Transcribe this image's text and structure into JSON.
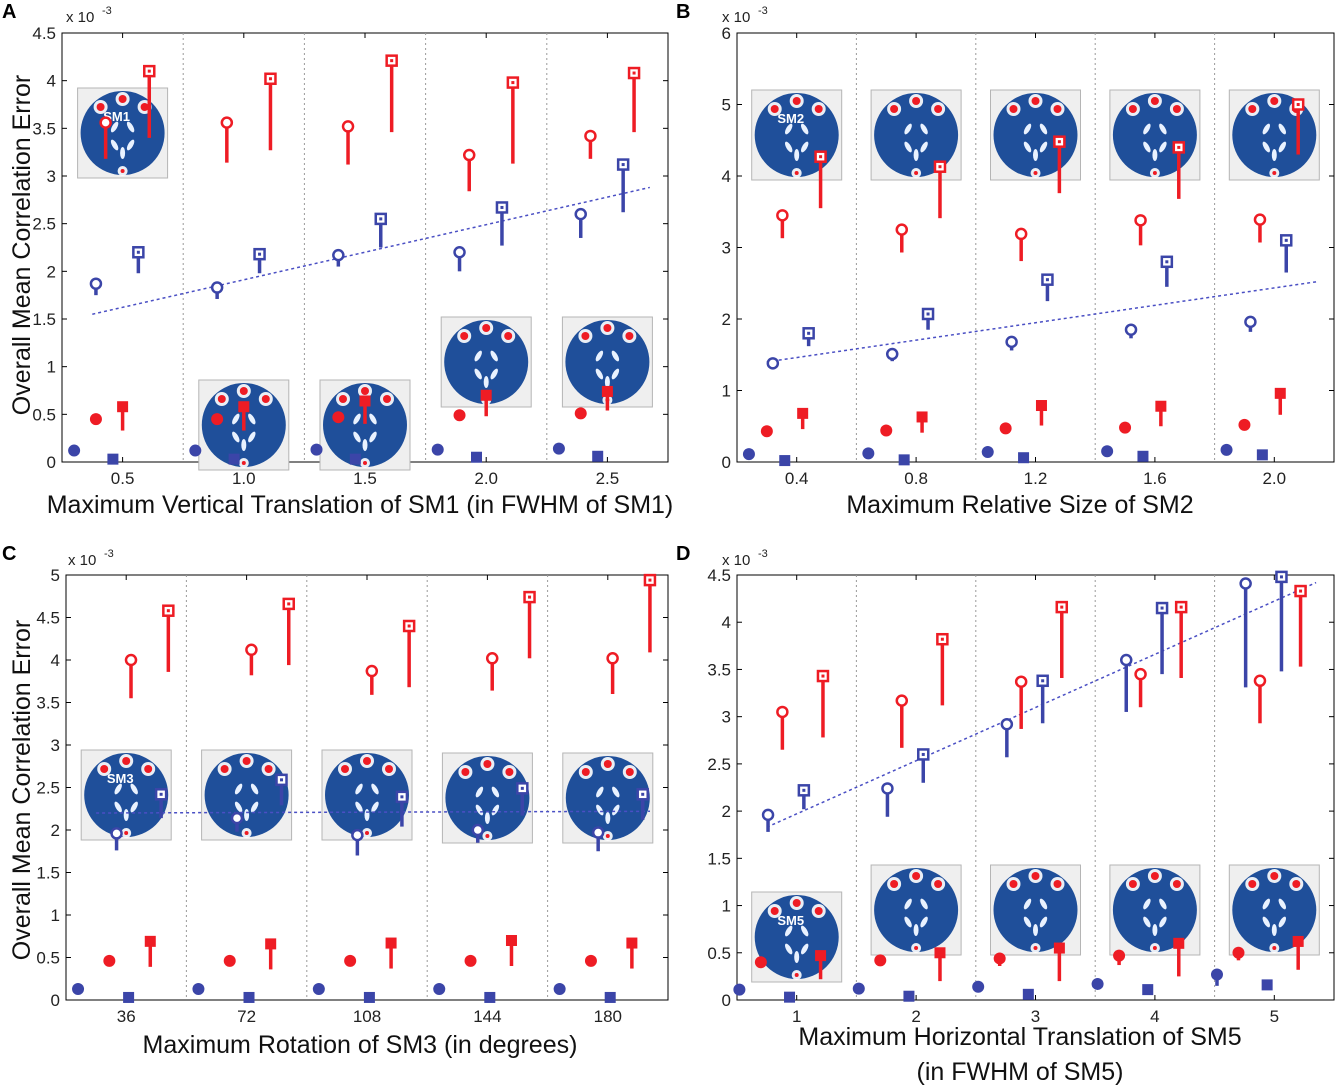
{
  "figure": {
    "colors": {
      "red": "#ee1c24",
      "blue": "#3b45a8",
      "trend": "#4a4fc4",
      "disk": "#1f4f9a",
      "grid": "#9a9a9a"
    },
    "legend": {
      "open_circle": "open circle",
      "open_square": "open square",
      "filled_circle": "filled circle",
      "filled_square": "filled square"
    }
  },
  "chart_data": [
    {
      "id": "A",
      "panel_label": "A",
      "type": "scatter",
      "xlabel": "Maximum Vertical Translation of SM1 (in FWHM of SM1)",
      "xlabel2": "",
      "ylabel": "Overall Mean Correlation Error",
      "scale": "x 10",
      "scale_exp": "-3",
      "ylim": [
        0,
        4.5
      ],
      "yticks": [
        0,
        0.5,
        1,
        1.5,
        2,
        2.5,
        3,
        3.5,
        4,
        4.5
      ],
      "ytick_labels": [
        "0",
        "0.5",
        "1",
        "1.5",
        "2",
        "2.5",
        "3",
        "3.5",
        "4",
        "4.5"
      ],
      "categories": [
        "0.5",
        "1.0",
        "1.5",
        "2.0",
        "2.5"
      ],
      "inset_label": "SM1",
      "inset_label_index": 0,
      "trend": [
        1.55,
        2.88
      ],
      "series": [
        {
          "name": "open circle",
          "color": "red",
          "marker": "circle",
          "filled": false,
          "offset": -0.14,
          "values": [
            3.56,
            3.56,
            3.52,
            3.22,
            3.42
          ],
          "stems": [
            0.38,
            0.42,
            0.4,
            0.38,
            0.24
          ]
        },
        {
          "name": "open square",
          "color": "red",
          "marker": "square",
          "filled": false,
          "offset": 0.22,
          "values": [
            4.1,
            4.02,
            4.21,
            3.98,
            4.08
          ],
          "stems": [
            0.7,
            0.75,
            0.75,
            0.85,
            0.62
          ]
        },
        {
          "name": "open circle",
          "color": "blue",
          "marker": "circle",
          "filled": false,
          "offset": -0.22,
          "values": [
            1.87,
            1.83,
            2.17,
            2.2,
            2.6
          ],
          "stems": [
            0.12,
            0.12,
            0.12,
            0.2,
            0.25
          ]
        },
        {
          "name": "open square",
          "color": "blue",
          "marker": "square",
          "filled": false,
          "offset": 0.13,
          "values": [
            2.2,
            2.18,
            2.55,
            2.67,
            3.12
          ],
          "stems": [
            0.22,
            0.2,
            0.3,
            0.4,
            0.5
          ]
        },
        {
          "name": "filled circle",
          "color": "red",
          "marker": "circle",
          "filled": true,
          "offset": -0.22,
          "values": [
            0.45,
            0.45,
            0.47,
            0.49,
            0.51
          ],
          "stems": [
            0,
            0,
            0,
            0,
            0
          ]
        },
        {
          "name": "filled square",
          "color": "red",
          "marker": "square",
          "filled": true,
          "offset": 0.0,
          "values": [
            0.58,
            0.58,
            0.64,
            0.7,
            0.74
          ],
          "stems": [
            0.25,
            0.25,
            0.24,
            0.22,
            0.2
          ]
        },
        {
          "name": "filled circle",
          "color": "blue",
          "marker": "circle",
          "filled": true,
          "offset": -0.4,
          "values": [
            0.12,
            0.12,
            0.13,
            0.13,
            0.14
          ],
          "stems": [
            0,
            0,
            0,
            0,
            0
          ]
        },
        {
          "name": "filled square",
          "color": "blue",
          "marker": "square",
          "filled": true,
          "offset": -0.08,
          "values": [
            0.03,
            0.03,
            0.03,
            0.05,
            0.06
          ],
          "stems": [
            0,
            0,
            0,
            0,
            0
          ]
        }
      ]
    },
    {
      "id": "B",
      "panel_label": "B",
      "type": "scatter",
      "xlabel": "Maximum Relative Size of SM2",
      "xlabel2": "",
      "ylabel": "",
      "scale": "x 10",
      "scale_exp": "-3",
      "ylim": [
        0,
        6
      ],
      "yticks": [
        0,
        1,
        2,
        3,
        4,
        5,
        6
      ],
      "ytick_labels": [
        "0",
        "1",
        "2",
        "3",
        "4",
        "5",
        "6"
      ],
      "categories": [
        "0.4",
        "0.8",
        "1.2",
        "1.6",
        "2.0"
      ],
      "inset_label": "SM2",
      "inset_label_index": 0,
      "trend": [
        1.4,
        2.52
      ],
      "series": [
        {
          "name": "open circle",
          "color": "red",
          "marker": "circle",
          "filled": false,
          "offset": -0.12,
          "values": [
            3.45,
            3.25,
            3.19,
            3.38,
            3.39
          ],
          "stems": [
            0.32,
            0.32,
            0.38,
            0.35,
            0.32
          ]
        },
        {
          "name": "open square",
          "color": "red",
          "marker": "square",
          "filled": false,
          "offset": 0.2,
          "values": [
            4.27,
            4.13,
            4.48,
            4.4,
            5.0
          ],
          "stems": [
            0.72,
            0.72,
            0.72,
            0.72,
            0.7
          ]
        },
        {
          "name": "open circle",
          "color": "blue",
          "marker": "circle",
          "filled": false,
          "offset": -0.2,
          "values": [
            1.38,
            1.51,
            1.68,
            1.85,
            1.96
          ],
          "stems": [
            0.06,
            0.1,
            0.12,
            0.12,
            0.14
          ]
        },
        {
          "name": "open square",
          "color": "blue",
          "marker": "square",
          "filled": false,
          "offset": 0.1,
          "values": [
            1.8,
            2.07,
            2.55,
            2.8,
            3.1
          ],
          "stems": [
            0.18,
            0.22,
            0.3,
            0.35,
            0.45
          ]
        },
        {
          "name": "filled circle",
          "color": "red",
          "marker": "circle",
          "filled": true,
          "offset": -0.25,
          "values": [
            0.43,
            0.44,
            0.47,
            0.48,
            0.52
          ],
          "stems": [
            0,
            0,
            0,
            0,
            0
          ]
        },
        {
          "name": "filled square",
          "color": "red",
          "marker": "square",
          "filled": true,
          "offset": 0.05,
          "values": [
            0.68,
            0.63,
            0.79,
            0.78,
            0.96
          ],
          "stems": [
            0.22,
            0.22,
            0.28,
            0.28,
            0.3
          ]
        },
        {
          "name": "filled circle",
          "color": "blue",
          "marker": "circle",
          "filled": true,
          "offset": -0.4,
          "values": [
            0.11,
            0.12,
            0.14,
            0.15,
            0.17
          ],
          "stems": [
            0,
            0,
            0,
            0,
            0
          ]
        },
        {
          "name": "filled square",
          "color": "blue",
          "marker": "square",
          "filled": true,
          "offset": -0.1,
          "values": [
            0.02,
            0.03,
            0.06,
            0.08,
            0.1
          ],
          "stems": [
            0,
            0,
            0,
            0,
            0
          ]
        }
      ]
    },
    {
      "id": "C",
      "panel_label": "C",
      "type": "scatter",
      "xlabel": "Maximum Rotation of SM3 (in degrees)",
      "xlabel2": "",
      "ylabel": "Overall Mean Correlation Error",
      "scale": "x 10",
      "scale_exp": "-3",
      "ylim": [
        0,
        5
      ],
      "yticks": [
        0,
        0.5,
        1,
        1.5,
        2,
        2.5,
        3,
        3.5,
        4,
        4.5,
        5
      ],
      "ytick_labels": [
        "0",
        "0.5",
        "1",
        "1.5",
        "2",
        "2.5",
        "3",
        "3.5",
        "4",
        "4.5",
        "5"
      ],
      "categories": [
        "36",
        "72",
        "108",
        "144",
        "180"
      ],
      "inset_label": "SM3",
      "inset_label_index": 0,
      "trend": [
        2.2,
        2.22
      ],
      "series": [
        {
          "name": "open circle",
          "color": "red",
          "marker": "circle",
          "filled": false,
          "offset": 0.04,
          "values": [
            4.0,
            4.12,
            3.87,
            4.02,
            4.02
          ],
          "stems": [
            0.45,
            0.3,
            0.28,
            0.38,
            0.42
          ]
        },
        {
          "name": "open square",
          "color": "red",
          "marker": "square",
          "filled": false,
          "offset": 0.35,
          "values": [
            4.58,
            4.66,
            4.4,
            4.74,
            4.94
          ],
          "stems": [
            0.72,
            0.72,
            0.72,
            0.72,
            0.85
          ]
        },
        {
          "name": "open circle",
          "color": "blue",
          "marker": "circle",
          "filled": false,
          "offset": -0.08,
          "values": [
            1.96,
            2.14,
            1.94,
            2.0,
            1.97
          ],
          "stems": [
            0.2,
            0.16,
            0.24,
            0.15,
            0.22
          ]
        },
        {
          "name": "open square",
          "color": "blue",
          "marker": "square",
          "filled": false,
          "offset": 0.29,
          "values": [
            2.42,
            2.59,
            2.39,
            2.49,
            2.42
          ],
          "stems": [
            0.28,
            0.3,
            0.35,
            0.32,
            0.3
          ]
        },
        {
          "name": "filled circle",
          "color": "red",
          "marker": "circle",
          "filled": true,
          "offset": -0.14,
          "values": [
            0.46,
            0.46,
            0.46,
            0.46,
            0.46
          ],
          "stems": [
            0,
            0,
            0,
            0,
            0
          ]
        },
        {
          "name": "filled square",
          "color": "red",
          "marker": "square",
          "filled": true,
          "offset": 0.2,
          "values": [
            0.69,
            0.66,
            0.67,
            0.7,
            0.67
          ],
          "stems": [
            0.3,
            0.3,
            0.3,
            0.3,
            0.3
          ]
        },
        {
          "name": "filled circle",
          "color": "blue",
          "marker": "circle",
          "filled": true,
          "offset": -0.4,
          "values": [
            0.13,
            0.13,
            0.13,
            0.13,
            0.13
          ],
          "stems": [
            0,
            0,
            0,
            0,
            0
          ]
        },
        {
          "name": "filled square",
          "color": "blue",
          "marker": "square",
          "filled": true,
          "offset": 0.02,
          "values": [
            0.03,
            0.03,
            0.03,
            0.03,
            0.03
          ],
          "stems": [
            0,
            0,
            0,
            0,
            0
          ]
        }
      ]
    },
    {
      "id": "D",
      "panel_label": "D",
      "type": "scatter",
      "xlabel": "Maximum  Horizontal Translation of SM5",
      "xlabel2": "(in FWHM of SM5)",
      "ylabel": "",
      "scale": "x 10",
      "scale_exp": "-3",
      "ylim": [
        0,
        4.5
      ],
      "yticks": [
        0,
        0.5,
        1,
        1.5,
        2,
        2.5,
        3,
        3.5,
        4,
        4.5
      ],
      "ytick_labels": [
        "0",
        "0.5",
        "1",
        "1.5",
        "2",
        "2.5",
        "3",
        "3.5",
        "4",
        "4.5"
      ],
      "categories": [
        "1",
        "2",
        "3",
        "4",
        "5"
      ],
      "inset_label": "SM5",
      "inset_label_index": 0,
      "trend": [
        1.83,
        4.42
      ],
      "series": [
        {
          "name": "open circle",
          "color": "red",
          "marker": "circle",
          "filled": false,
          "offset": -0.12,
          "values": [
            3.05,
            3.17,
            3.37,
            3.45,
            3.38
          ],
          "stems": [
            0.4,
            0.5,
            0.5,
            0.35,
            0.45
          ]
        },
        {
          "name": "open square",
          "color": "red",
          "marker": "square",
          "filled": false,
          "offset": 0.22,
          "values": [
            3.43,
            3.82,
            4.16,
            4.16,
            4.33
          ],
          "stems": [
            0.65,
            0.7,
            0.75,
            0.75,
            0.8
          ]
        },
        {
          "name": "open circle",
          "color": "blue",
          "marker": "circle",
          "filled": false,
          "offset": -0.24,
          "values": [
            1.96,
            2.24,
            2.92,
            3.6,
            4.41
          ],
          "stems": [
            0.18,
            0.3,
            0.35,
            0.55,
            1.1
          ]
        },
        {
          "name": "open square",
          "color": "blue",
          "marker": "square",
          "filled": false,
          "offset": 0.06,
          "values": [
            2.22,
            2.6,
            3.38,
            4.15,
            4.48
          ],
          "stems": [
            0.2,
            0.3,
            0.45,
            0.7,
            1.0
          ]
        },
        {
          "name": "filled circle",
          "color": "red",
          "marker": "circle",
          "filled": true,
          "offset": -0.3,
          "values": [
            0.4,
            0.42,
            0.44,
            0.47,
            0.5
          ],
          "stems": [
            0,
            0,
            0.08,
            0.1,
            0.08
          ]
        },
        {
          "name": "filled square",
          "color": "red",
          "marker": "square",
          "filled": true,
          "offset": 0.2,
          "values": [
            0.47,
            0.5,
            0.55,
            0.6,
            0.62
          ],
          "stems": [
            0.25,
            0.3,
            0.35,
            0.35,
            0.3
          ]
        },
        {
          "name": "filled circle",
          "color": "blue",
          "marker": "circle",
          "filled": true,
          "offset": -0.48,
          "values": [
            0.11,
            0.12,
            0.14,
            0.17,
            0.27
          ],
          "stems": [
            0,
            0,
            0,
            0.05,
            0.12
          ]
        },
        {
          "name": "filled square",
          "color": "blue",
          "marker": "square",
          "filled": true,
          "offset": -0.06,
          "values": [
            0.03,
            0.04,
            0.06,
            0.11,
            0.16
          ],
          "stems": [
            0,
            0,
            0,
            0.05,
            0
          ]
        }
      ]
    }
  ]
}
